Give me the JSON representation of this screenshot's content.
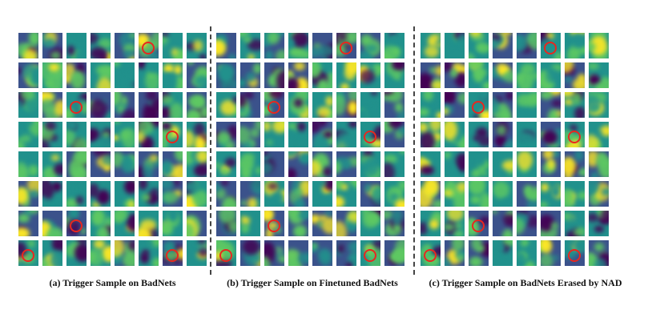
{
  "panels": [
    {
      "caption": "(a) Trigger Sample on BadNets",
      "rows": 8,
      "cols": 8,
      "highlighted": [
        [
          0,
          5
        ],
        [
          2,
          2
        ],
        [
          3,
          6
        ],
        [
          6,
          2
        ],
        [
          7,
          0
        ],
        [
          7,
          6
        ]
      ]
    },
    {
      "caption": "(b) Trigger Sample on Finetuned BadNets",
      "rows": 8,
      "cols": 8,
      "highlighted": [
        [
          0,
          5
        ],
        [
          2,
          2
        ],
        [
          3,
          6
        ],
        [
          6,
          2
        ],
        [
          7,
          0
        ],
        [
          7,
          6
        ]
      ]
    },
    {
      "caption": "(c) Trigger Sample on BadNets Erased by NAD",
      "rows": 8,
      "cols": 8,
      "highlighted": [
        [
          0,
          5
        ],
        [
          2,
          2
        ],
        [
          3,
          6
        ],
        [
          6,
          2
        ],
        [
          7,
          0
        ],
        [
          7,
          6
        ]
      ]
    }
  ],
  "colors": {
    "colormap": [
      "#440154",
      "#3b528b",
      "#21918c",
      "#5ec962",
      "#fde725"
    ],
    "marker": "#e8271f",
    "divider": "#444444"
  }
}
